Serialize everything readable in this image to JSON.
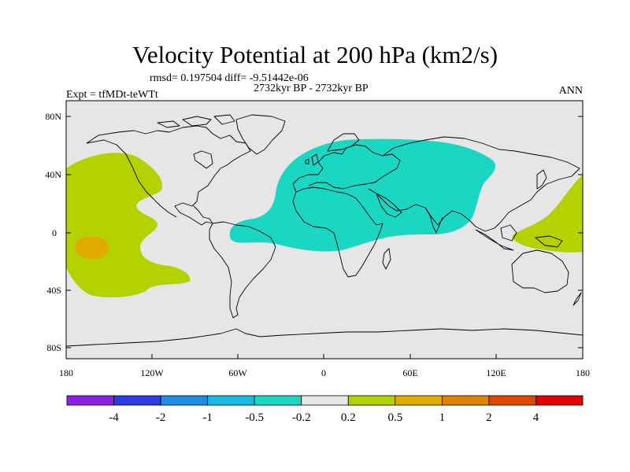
{
  "title": "Velocity Potential at 200 hPa (km2/s)",
  "stats": "rmsd= 0.197504 diff= -9.51442e-06",
  "period": "2732kyr BP - 2732kyr BP",
  "experiment": "Expt = tfMDt-teWTt",
  "season": "ANN",
  "colors": {
    "background_field": "#e6e6e6",
    "negative_region": "#19d7c3",
    "positive_region": "#b4d200",
    "positive_strong": "#e1aa00",
    "coast": "#000000"
  },
  "axes": {
    "y_ticks": [
      "80N",
      "40N",
      "0",
      "40S",
      "80S"
    ],
    "x_ticks": [
      "180",
      "120W",
      "60W",
      "0",
      "60E",
      "120E",
      "180"
    ]
  },
  "colorbar": {
    "colors": [
      "#8c1ee6",
      "#2c3ce6",
      "#1e8ce6",
      "#19b9e6",
      "#19d7c3",
      "#e6e6e6",
      "#b4d200",
      "#e1aa00",
      "#e18200",
      "#e14600",
      "#e60000"
    ],
    "labels": [
      "-4",
      "-2",
      "-1",
      "-0.5",
      "-0.2",
      "0.2",
      "0.5",
      "1",
      "2",
      "4"
    ]
  }
}
